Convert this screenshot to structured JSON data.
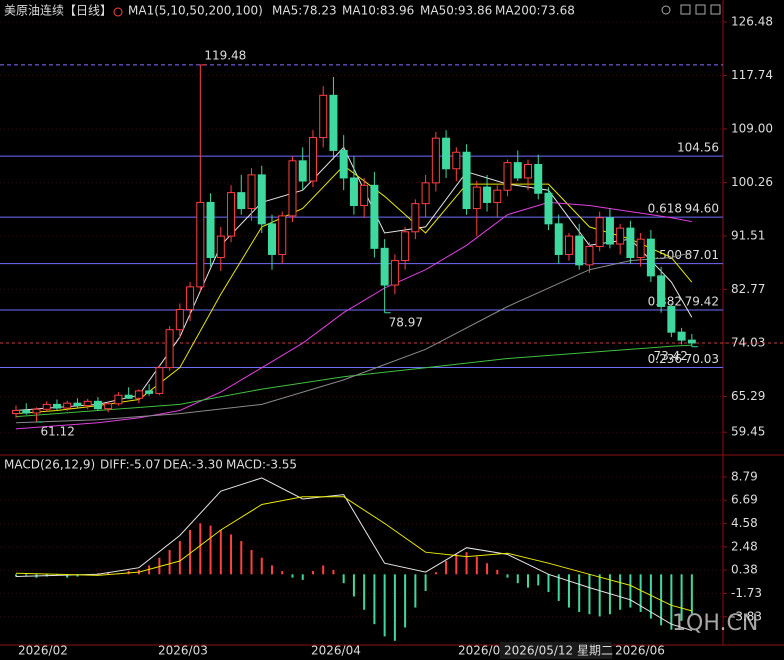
{
  "chart_data": [
    {
      "type": "candlestick",
      "title": "美原油连续【日线】",
      "indicator": "MA1(5,10,50,200,100)",
      "up_color": "#ff4040",
      "down_color": "#3fd9a0",
      "ylim": [
        56.22,
        128.77
      ],
      "yticks": [
        126.48,
        117.74,
        {
          "value": 109,
          "label": "109.00"
        },
        100.26,
        91.51,
        82.77,
        74.03,
        65.29,
        59.45
      ],
      "grid": true,
      "last_price": 74.03,
      "ohlc": [
        [
          62.5,
          63.8,
          61.8,
          63.0
        ],
        [
          63.0,
          64.2,
          62.3,
          62.6
        ],
        [
          62.6,
          63.5,
          61.12,
          63.2
        ],
        [
          63.2,
          64.5,
          62.8,
          64.0
        ],
        [
          64.0,
          64.8,
          63.0,
          63.4
        ],
        [
          63.4,
          64.6,
          62.9,
          64.2
        ],
        [
          64.2,
          65.0,
          63.5,
          63.8
        ],
        [
          63.8,
          64.9,
          63.2,
          64.5
        ],
        [
          64.5,
          65.2,
          63.0,
          63.3
        ],
        [
          63.3,
          64.4,
          62.7,
          64.1
        ],
        [
          64.1,
          66.0,
          63.8,
          65.5
        ],
        [
          65.5,
          66.8,
          64.9,
          65.0
        ],
        [
          65.0,
          66.5,
          64.2,
          66.2
        ],
        [
          66.2,
          67.3,
          65.4,
          65.8
        ],
        [
          65.8,
          70.5,
          65.5,
          70.0
        ],
        [
          70.0,
          76.8,
          69.5,
          76.2
        ],
        [
          76.2,
          80.5,
          74.8,
          79.5
        ],
        [
          79.5,
          84.0,
          77.6,
          83.2
        ],
        [
          83.2,
          119.48,
          82.5,
          97.0
        ],
        [
          97.0,
          98.5,
          86.5,
          88.0
        ],
        [
          88.0,
          93.0,
          85.8,
          91.5
        ],
        [
          91.5,
          99.8,
          90.5,
          98.6
        ],
        [
          98.6,
          101.5,
          95.0,
          96.0
        ],
        [
          96.0,
          102.6,
          94.0,
          101.5
        ],
        [
          101.5,
          103.0,
          92.0,
          93.5
        ],
        [
          93.5,
          95.0,
          86.0,
          88.5
        ],
        [
          88.5,
          95.5,
          87.0,
          94.8
        ],
        [
          94.8,
          104.5,
          93.8,
          103.8
        ],
        [
          103.8,
          106.0,
          99.0,
          100.5
        ],
        [
          100.5,
          108.8,
          99.5,
          107.6
        ],
        [
          107.6,
          116.0,
          106.0,
          114.5
        ],
        [
          114.5,
          117.5,
          104.0,
          105.5
        ],
        [
          105.5,
          108.0,
          99.0,
          101.0
        ],
        [
          101.0,
          104.5,
          95.0,
          96.5
        ],
        [
          96.5,
          101.0,
          94.5,
          99.8
        ],
        [
          99.8,
          102.0,
          88.0,
          89.5
        ],
        [
          89.5,
          91.0,
          78.97,
          83.5
        ],
        [
          83.5,
          88.5,
          82.0,
          87.5
        ],
        [
          87.5,
          93.0,
          86.0,
          92.2
        ],
        [
          92.2,
          97.5,
          91.0,
          96.8
        ],
        [
          96.8,
          101.5,
          94.5,
          100.2
        ],
        [
          100.2,
          108.5,
          98.8,
          107.5
        ],
        [
          107.5,
          108.8,
          101.0,
          102.5
        ],
        [
          102.5,
          106.0,
          100.5,
          105.2
        ],
        [
          105.2,
          106.5,
          95.0,
          96.0
        ],
        [
          96.0,
          100.5,
          91.5,
          99.5
        ],
        [
          99.5,
          101.5,
          95.5,
          97.0
        ],
        [
          97.0,
          99.8,
          94.5,
          99.0
        ],
        [
          99.0,
          104.0,
          98.0,
          103.5
        ],
        [
          103.5,
          105.5,
          100.5,
          101.0
        ],
        [
          101.0,
          104.0,
          99.0,
          103.2
        ],
        [
          103.2,
          104.8,
          97.5,
          98.5
        ],
        [
          98.5,
          99.5,
          92.5,
          93.5
        ],
        [
          93.5,
          95.0,
          87.0,
          88.5
        ],
        [
          88.5,
          92.0,
          87.5,
          91.5
        ],
        [
          91.5,
          93.5,
          86.0,
          86.8
        ],
        [
          86.8,
          90.5,
          85.5,
          89.8
        ],
        [
          89.8,
          95.5,
          89.0,
          94.5
        ],
        [
          94.5,
          96.0,
          89.5,
          90.2
        ],
        [
          90.2,
          93.5,
          88.5,
          92.8
        ],
        [
          92.8,
          94.0,
          87.0,
          88.0
        ],
        [
          88.0,
          92.0,
          86.5,
          91.0
        ],
        [
          91.0,
          92.5,
          84.0,
          85.0
        ],
        [
          85.0,
          86.5,
          79.0,
          80.0
        ],
        [
          80.0,
          80.5,
          75.0,
          75.8
        ],
        [
          75.8,
          76.5,
          73.8,
          74.5
        ],
        [
          74.5,
          75.5,
          73.42,
          74.03
        ]
      ],
      "series": [
        {
          "name": "MA5:78.23",
          "color": "#e6e6e6",
          "x": [
            0,
            4,
            8,
            12,
            16,
            20,
            24,
            28,
            32,
            36,
            40,
            44,
            48,
            52,
            56,
            60,
            64,
            66
          ],
          "values": [
            63,
            63.5,
            64,
            65.5,
            75,
            90,
            97,
            99,
            106,
            92,
            93,
            102,
            100,
            99,
            90,
            91,
            84,
            78.23
          ]
        },
        {
          "name": "MA10:83.96",
          "color": "#e8e800",
          "x": [
            0,
            4,
            8,
            12,
            16,
            20,
            24,
            28,
            32,
            36,
            40,
            44,
            48,
            52,
            56,
            60,
            64,
            66
          ],
          "values": [
            62.5,
            63,
            63.8,
            64.8,
            70,
            82,
            93,
            96,
            103,
            98,
            92,
            100,
            100,
            100,
            93,
            91,
            88,
            83.96
          ]
        },
        {
          "name": "MA50:93.86",
          "color": "#e040e0",
          "x": [
            0,
            4,
            8,
            12,
            16,
            20,
            24,
            28,
            32,
            36,
            40,
            44,
            48,
            52,
            56,
            60,
            64,
            66
          ],
          "values": [
            60,
            60.5,
            61,
            61.8,
            63,
            66,
            70,
            74,
            79,
            83,
            86,
            90,
            95,
            97,
            96.5,
            95.5,
            94.5,
            93.86
          ]
        },
        {
          "name": "MA200:73.68",
          "color": "#40c040",
          "x": [
            0,
            8,
            16,
            24,
            32,
            40,
            48,
            56,
            64,
            66
          ],
          "values": [
            62,
            63,
            64,
            66.5,
            68.5,
            70,
            71.5,
            72.5,
            73.5,
            73.68
          ]
        },
        {
          "color": "#8a8a8a",
          "x": [
            0,
            8,
            16,
            24,
            32,
            40,
            48,
            56,
            60,
            64,
            66
          ],
          "values": [
            61,
            61.5,
            62.5,
            64,
            68,
            73,
            80,
            86,
            87.5,
            88,
            88.8
          ]
        }
      ],
      "levels": [
        {
          "value": 119.48,
          "style": "dashed"
        },
        {
          "value": 104.56
        },
        {
          "ratio": "0.618",
          "value": {
            "value": 94.6,
            "label": "94.60"
          }
        },
        {
          "ratio": "0.500",
          "value": 87.01
        },
        {
          "ratio": "0.382",
          "value": 79.42
        },
        {
          "ratio": "0.236",
          "value": 70.03
        }
      ],
      "annotations": [
        {
          "index": 18,
          "value": 119.48,
          "color": "#ff4040"
        },
        {
          "index": 36,
          "value": 78.97,
          "color": "#3fd9a0"
        },
        {
          "index": 2,
          "value": 61.12,
          "color": "#3fd9a0"
        },
        {
          "index": 66,
          "value": 73.42,
          "color": "#3fd9a0"
        }
      ]
    },
    {
      "type": "macd",
      "title": "MACD(26,12,9)",
      "ylim": [
        -6.38,
        10.5
      ],
      "yticks": [
        8.79,
        6.69,
        4.58,
        2.48,
        0.38,
        -1.73,
        -3.83
      ],
      "up_color": "#ff4040",
      "down_color": "#3fd9a0",
      "x_labels": [
        "2026/02",
        "2026/03",
        "2026/04",
        "2026/05",
        "2026/06"
      ],
      "series": [
        {
          "name": "DIFF:-5.07",
          "color": "#e6e6e6",
          "x": [
            0,
            4,
            8,
            12,
            16,
            20,
            24,
            28,
            32,
            36,
            40,
            44,
            48,
            52,
            56,
            60,
            64,
            66
          ],
          "values": [
            -0.2,
            -0.1,
            0.0,
            0.6,
            3.5,
            7.5,
            8.7,
            6.8,
            7.2,
            1.0,
            0.2,
            2.4,
            1.8,
            0.0,
            -1.2,
            -2.3,
            -4.5,
            -5.07
          ]
        },
        {
          "name": "DEA:-3.30",
          "color": "#e8e800",
          "x": [
            0,
            4,
            8,
            12,
            16,
            20,
            24,
            28,
            32,
            36,
            40,
            44,
            48,
            52,
            56,
            60,
            64,
            66
          ],
          "values": [
            0.1,
            0.0,
            -0.1,
            0.2,
            1.2,
            4.0,
            6.3,
            7.0,
            7.0,
            4.6,
            2.0,
            1.6,
            1.9,
            1.0,
            0.0,
            -1.0,
            -2.8,
            -3.3
          ]
        },
        {
          "name": "MACD:-3.55",
          "color": "#e040e0",
          "bars": true,
          "values": [
            -0.2,
            -0.1,
            -0.3,
            -0.2,
            -0.1,
            -0.3,
            -0.2,
            -0.1,
            0.1,
            0.2,
            0.1,
            0.3,
            0.4,
            0.8,
            1.5,
            2.2,
            3.0,
            4.0,
            4.6,
            4.4,
            4.0,
            3.6,
            3.0,
            2.2,
            1.5,
            0.8,
            0.3,
            -0.3,
            -0.5,
            0.3,
            0.8,
            0.4,
            -0.8,
            -2.0,
            -3.2,
            -4.5,
            -5.6,
            -6.0,
            -4.8,
            -3.0,
            -1.5,
            0.2,
            1.2,
            1.8,
            2.0,
            1.6,
            1.0,
            0.4,
            -0.3,
            -0.8,
            -1.2,
            -1.0,
            -1.6,
            -2.4,
            -3.0,
            -3.4,
            -3.6,
            -3.8,
            -3.6,
            -3.2,
            -3.0,
            -3.4,
            -4.0,
            -4.6,
            -5.0,
            -4.2,
            -3.55
          ]
        }
      ]
    }
  ],
  "crosshair_label": "2026/05/12 星期二",
  "watermark": "1QH.CN"
}
